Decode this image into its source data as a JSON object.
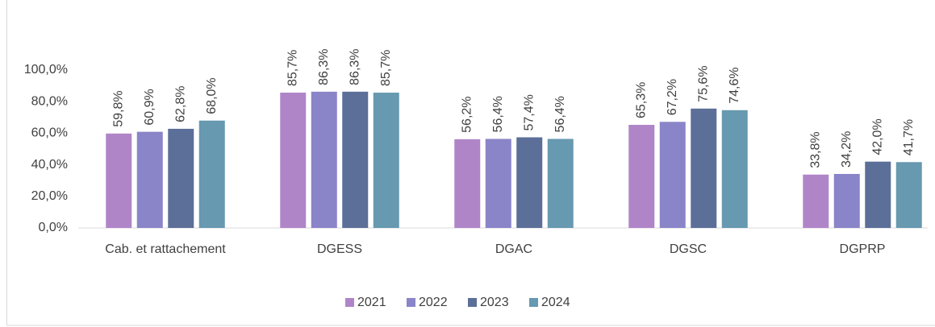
{
  "chart_data": {
    "type": "bar",
    "categories": [
      "Cab. et rattachement",
      "DGESS",
      "DGAC",
      "DGSC",
      "DGPRP"
    ],
    "series": [
      {
        "name": "2021",
        "color": "#b085c8",
        "values": [
          59.8,
          85.7,
          56.2,
          65.3,
          33.8
        ],
        "value_labels": [
          "59,8%",
          "85,7%",
          "56,2%",
          "65,3%",
          "33,8%"
        ]
      },
      {
        "name": "2022",
        "color": "#8a84c8",
        "values": [
          60.9,
          86.3,
          56.4,
          67.2,
          34.2
        ],
        "value_labels": [
          "60,9%",
          "86,3%",
          "56,4%",
          "67,2%",
          "34,2%"
        ]
      },
      {
        "name": "2023",
        "color": "#5b6f98",
        "values": [
          62.8,
          86.3,
          57.4,
          75.6,
          42.0
        ],
        "value_labels": [
          "62,8%",
          "86,3%",
          "57,4%",
          "75,6%",
          "42,0%"
        ]
      },
      {
        "name": "2024",
        "color": "#6799b0",
        "values": [
          68.0,
          85.7,
          56.4,
          74.6,
          41.7
        ],
        "value_labels": [
          "68,0%",
          "85,7%",
          "56,4%",
          "74,6%",
          "41,7%"
        ]
      }
    ],
    "ylim": [
      0,
      100
    ],
    "yticks": [
      {
        "value": 0,
        "label": "0,0%"
      },
      {
        "value": 20,
        "label": "20,0%"
      },
      {
        "value": 40,
        "label": "40,0%"
      },
      {
        "value": 60,
        "label": "60,0%"
      },
      {
        "value": 80,
        "label": "80,0%"
      },
      {
        "value": 100,
        "label": "100,0%"
      }
    ],
    "legend": "bottom",
    "grid": false
  }
}
